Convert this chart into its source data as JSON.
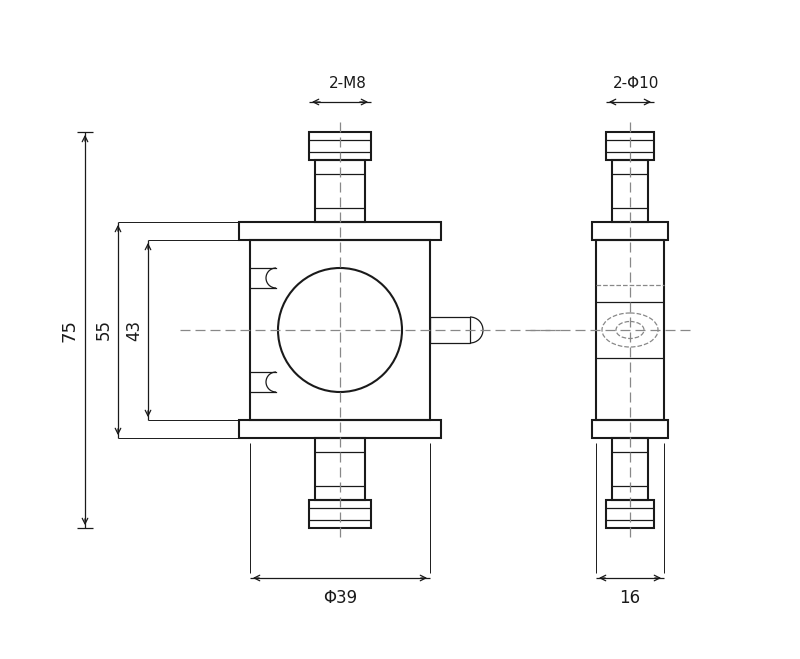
{
  "bg_color": "#ffffff",
  "line_color": "#1a1a1a",
  "dash_color": "#888888",
  "fig_width": 8.0,
  "fig_height": 6.59,
  "dpi": 100,
  "annotations": {
    "label_2M8": "2-M8",
    "label_2phi10": "2-Φ10",
    "label_phi39": "Φ39",
    "label_16": "16",
    "label_75": "75",
    "label_55": "55",
    "label_43": "43"
  }
}
